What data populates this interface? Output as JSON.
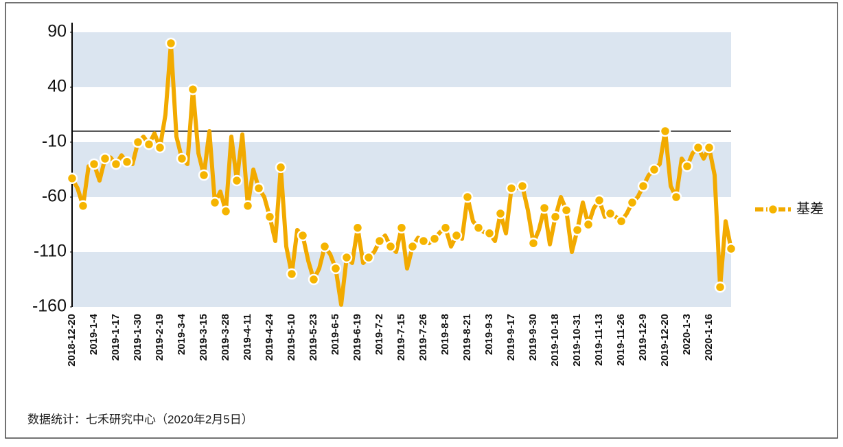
{
  "chart_data": {
    "type": "line",
    "series": [
      {
        "name": "基差",
        "color": "#f2aa00",
        "values": [
          -43,
          -52,
          -68,
          -32,
          -30,
          -45,
          -25,
          -24,
          -30,
          -22,
          -28,
          -30,
          -10,
          -5,
          -12,
          -2,
          -15,
          15,
          80,
          -5,
          -25,
          -30,
          38,
          -20,
          -40,
          0,
          -65,
          -55,
          -73,
          -5,
          -45,
          -3,
          -68,
          -35,
          -52,
          -60,
          -78,
          -100,
          -33,
          -105,
          -130,
          -90,
          -95,
          -118,
          -135,
          -125,
          -105,
          -112,
          -125,
          -158,
          -115,
          -120,
          -88,
          -120,
          -115,
          -110,
          -100,
          -95,
          -105,
          -110,
          -88,
          -125,
          -105,
          -97,
          -100,
          -102,
          -98,
          -92,
          -88,
          -105,
          -95,
          -98,
          -60,
          -82,
          -88,
          -92,
          -93,
          -100,
          -75,
          -93,
          -52,
          -52,
          -50,
          -72,
          -102,
          -90,
          -70,
          -103,
          -78,
          -60,
          -72,
          -110,
          -90,
          -65,
          -85,
          -70,
          -63,
          -78,
          -75,
          -78,
          -82,
          -75,
          -65,
          -60,
          -50,
          -40,
          -35,
          -30,
          0,
          -50,
          -60,
          -25,
          -32,
          -20,
          -15,
          -25,
          -15,
          -40,
          -142,
          -82,
          -107
        ]
      }
    ],
    "categories": [
      "2018-12-20",
      null,
      null,
      null,
      "2019-1-4",
      null,
      null,
      null,
      "2019-1-17",
      null,
      null,
      null,
      "2019-1-30",
      null,
      null,
      null,
      "2019-2-19",
      null,
      null,
      null,
      "2019-3-4",
      null,
      null,
      null,
      "2019-3-15",
      null,
      null,
      null,
      "2019-3-28",
      null,
      null,
      null,
      "2019-4-11",
      null,
      null,
      null,
      "2019-4-24",
      null,
      null,
      null,
      "2019-5-10",
      null,
      null,
      null,
      "2019-5-23",
      null,
      null,
      null,
      "2019-6-5",
      null,
      null,
      null,
      "2019-6-19",
      null,
      null,
      null,
      "2019-7-2",
      null,
      null,
      null,
      "2019-7-15",
      null,
      null,
      null,
      "2019-7-26",
      null,
      null,
      null,
      "2019-8-8",
      null,
      null,
      null,
      "2019-8-21",
      null,
      null,
      null,
      "2019-9-3",
      null,
      null,
      null,
      "2019-9-17",
      null,
      null,
      null,
      "2019-9-30",
      null,
      null,
      null,
      "2019-10-18",
      null,
      null,
      null,
      "2019-10-31",
      null,
      null,
      null,
      "2019-11-13",
      null,
      null,
      null,
      "2019-11-26",
      null,
      null,
      null,
      "2019-12-9",
      null,
      null,
      null,
      "2019-12-20",
      null,
      null,
      null,
      "2020-1-3",
      null,
      null,
      null,
      "2020-1-16",
      null,
      null,
      null,
      null
    ],
    "ylim": [
      -160,
      90
    ],
    "yticks": [
      90,
      40,
      -10,
      -60,
      -110,
      -160
    ],
    "hline": 0,
    "source": "数据统计：七禾研究中心（2020年2月5日）"
  }
}
